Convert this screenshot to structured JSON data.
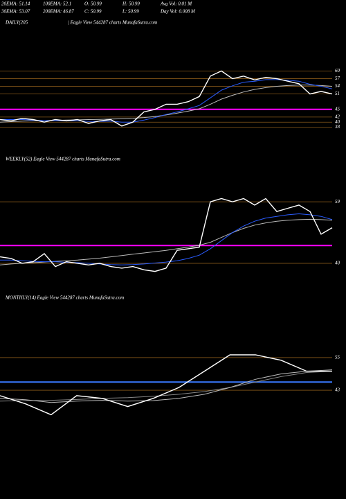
{
  "header": {
    "row1": [
      "20EMA: 51.14",
      "100EMA: 52.1",
      "O: 50.99",
      "H: 50.99",
      "Avg Vol: 0.01 M"
    ],
    "row2": [
      "30EMA: 53.07",
      "200EMA: 46.87",
      "C: 50.99",
      "L: 50.99",
      "Day Vol: 0.008 M"
    ]
  },
  "chart_data": [
    {
      "type": "line",
      "title": "DAILY(205",
      "subtitle": "| Eagle  View  544287 charts MunafaSutra.com",
      "ylim": [
        36,
        62
      ],
      "yticks": [
        60,
        57,
        54,
        51,
        45,
        42,
        40,
        38
      ],
      "grid": true,
      "grid_color": "#8a5a1a",
      "reference_lines": [
        {
          "value": 45,
          "color": "#ff00ff"
        }
      ],
      "series": [
        {
          "color": "#ffffff",
          "values": [
            41,
            40.5,
            41.5,
            41,
            40,
            41,
            40.5,
            41,
            39.5,
            40.5,
            41,
            38.5,
            40,
            44,
            45,
            47,
            47,
            48,
            50,
            58,
            60,
            57,
            58,
            56.5,
            57.5,
            57,
            56,
            55,
            51,
            52,
            51
          ]
        },
        {
          "color": "#2a5cff",
          "values": [
            41,
            41,
            41,
            40.8,
            40.6,
            40.6,
            40.5,
            40.5,
            40.3,
            40.3,
            40.4,
            40,
            40,
            40.8,
            41.8,
            43,
            44,
            45.2,
            46.5,
            49.5,
            52.5,
            54.2,
            55.6,
            56,
            56.6,
            56.6,
            56.4,
            56,
            54.8,
            54,
            53
          ]
        },
        {
          "color": "#bbbbbb",
          "values": [
            40,
            40.2,
            40.4,
            40.5,
            40.6,
            40.7,
            40.8,
            40.9,
            41,
            41.1,
            41.2,
            41.3,
            41.5,
            41.8,
            42.2,
            42.8,
            43.5,
            44.3,
            45.2,
            47,
            49,
            50.5,
            51.8,
            52.8,
            53.5,
            54,
            54.3,
            54.5,
            54.5,
            54.3,
            54
          ]
        }
      ]
    },
    {
      "type": "line",
      "title": "WEEKLY(52) Eagle  View  544287 charts MunafaSutra.com",
      "ylim": [
        35.7,
        61.4
      ],
      "yticks": [
        59,
        40
      ],
      "grid": true,
      "grid_color": "#8a5a1a",
      "reference_lines": [
        {
          "value": 45.5,
          "color": "#ff00ff"
        }
      ],
      "series": [
        {
          "color": "#ffffff",
          "values": [
            42,
            41.5,
            40,
            40.5,
            43,
            39,
            40.5,
            40,
            39.5,
            40,
            39,
            38.5,
            39,
            38,
            37.5,
            38.5,
            44,
            44.5,
            45,
            59,
            60,
            59,
            60,
            58,
            60,
            56,
            57,
            58,
            56,
            49,
            51
          ]
        },
        {
          "color": "#2a5cff",
          "values": [
            41,
            41,
            40.8,
            40.6,
            40.5,
            40.5,
            40.3,
            40.2,
            40,
            39.8,
            39.6,
            39.5,
            39.6,
            39.8,
            40.1,
            40.4,
            40.8,
            41.5,
            42.5,
            44.5,
            47,
            49.5,
            51.5,
            53,
            54,
            54.5,
            55,
            55.3,
            55,
            54.5,
            53.5
          ]
        },
        {
          "color": "#bbbbbb",
          "values": [
            39.5,
            39.8,
            40,
            40.2,
            40.4,
            40.6,
            40.8,
            41,
            41.3,
            41.6,
            42,
            42.4,
            42.8,
            43.2,
            43.6,
            44,
            44.5,
            45,
            45.6,
            46.5,
            48,
            49.5,
            50.8,
            51.8,
            52.5,
            53,
            53.3,
            53.5,
            53.6,
            53.5,
            53.3
          ]
        }
      ]
    },
    {
      "type": "line",
      "title": "MONTHLY(14) Eagle  View  544287 charts MunafaSutra.com",
      "ylim": [
        28.5,
        61.6
      ],
      "yticks": [
        55,
        43
      ],
      "grid": true,
      "grid_color": "#8a5a1a",
      "reference_lines": [
        {
          "value": 46,
          "color": "#3a7bff"
        }
      ],
      "series": [
        {
          "color": "#ffffff",
          "values": [
            41,
            38,
            34,
            41,
            40,
            37,
            40,
            44,
            50,
            56,
            56,
            54,
            50,
            50
          ]
        },
        {
          "color": "#bbbbbb",
          "values": [
            40,
            39.5,
            38.5,
            39,
            39.3,
            39,
            39.2,
            40,
            41.5,
            44,
            47,
            49,
            50,
            50.5
          ]
        },
        {
          "color": "#888888",
          "values": [
            39,
            39.2,
            39.3,
            39.6,
            40,
            40.3,
            40.8,
            41.5,
            42.5,
            44,
            46,
            48,
            49.5,
            50
          ]
        }
      ]
    }
  ]
}
